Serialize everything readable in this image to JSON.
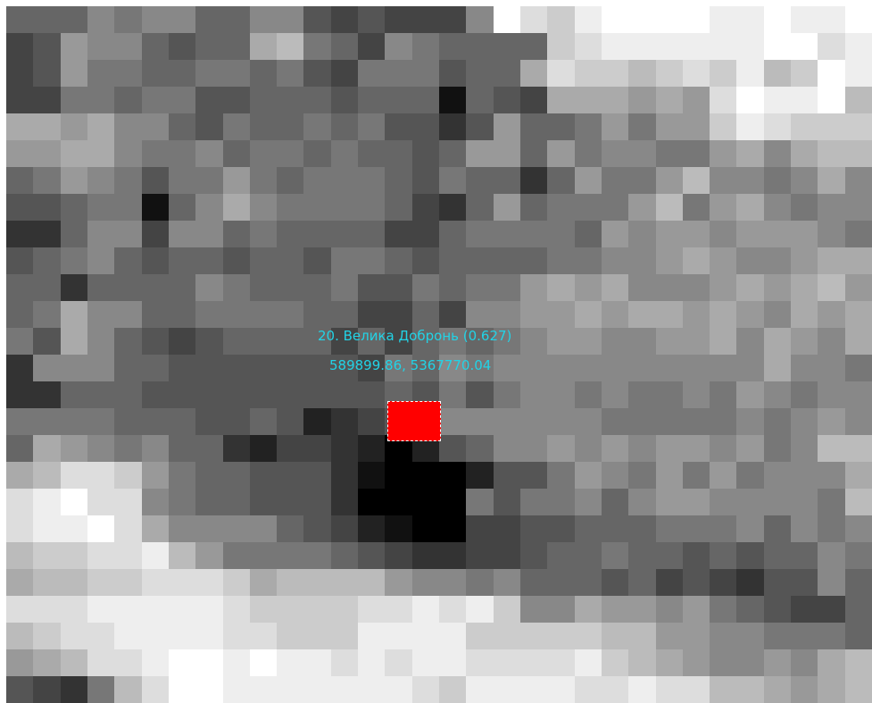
{
  "map": {
    "type": "grayscale-raster",
    "label_name": "20. Велика Добронь (0.627)",
    "label_coords": "589899.86, 5367770.04",
    "marker_color": "#ff0000",
    "label_color": "#22d3e6",
    "rows": [
      "666878866885454448FDCEFFFFEEFEEFEEFEE8",
      "459886566AB764876666CDEEEEEEFFDEEEDCC9",
      "4597766776754777566ADCCBCDCEBCFEDCDB9A",
      "44776775566656661654AAA9A9DFEEFBDAACD9",
      "AA9A8865766767553596679799CEDCCC98CC6",
      "99AA87786776766569969788779A8ABB98AB9",
      "6798757797677765766369779B8878A877779B",
      "55677168A877776436967779B79A87887778AA",
      "33688488676666446777769899899987A98A9",
      "5678656656657765666677889A9889AA9AAAA99",
      "66366668766675576779A9A8889A9AB9AAAAD",
      "67A886677776644648899A9AA9A98A9AA98CDE",
      "75A86545666646467678998899A8A98A9B8CDE",
      "3888665555555476878888888888A887678CDD",
      "336665555555556575788787787987889ACDD",
      "77776665565234558888887777787898CDCDE",
      "6A9878663244320256889898998978BBBDEB9",
      "ABDDC97665553100025579879797888ADEDDA",
      "DEFDD87665553000075778689988887BDDCCA",
      "DEEFDA88886542100445566677786878CDEDDB",
      "BCCDDEB97777654334456676656566878BEEBB",
      "ABBCCDDDCABBBB9887866656454355869CCBBBB",
      "DDDEEEEEDCCCCDDEDEC88A9989765446ADDDC9",
      "BCDDEEEEDDCCCEEEECCCCCBB998877769BCCCDC",
      "9ABDDEFFEFEEDEDEEDDDDECBA98898ABDDCCBC",
      "5437BDFFEEEEEEEDCEEEEDDEDDBBA9ABCDDCCB"
    ]
  }
}
